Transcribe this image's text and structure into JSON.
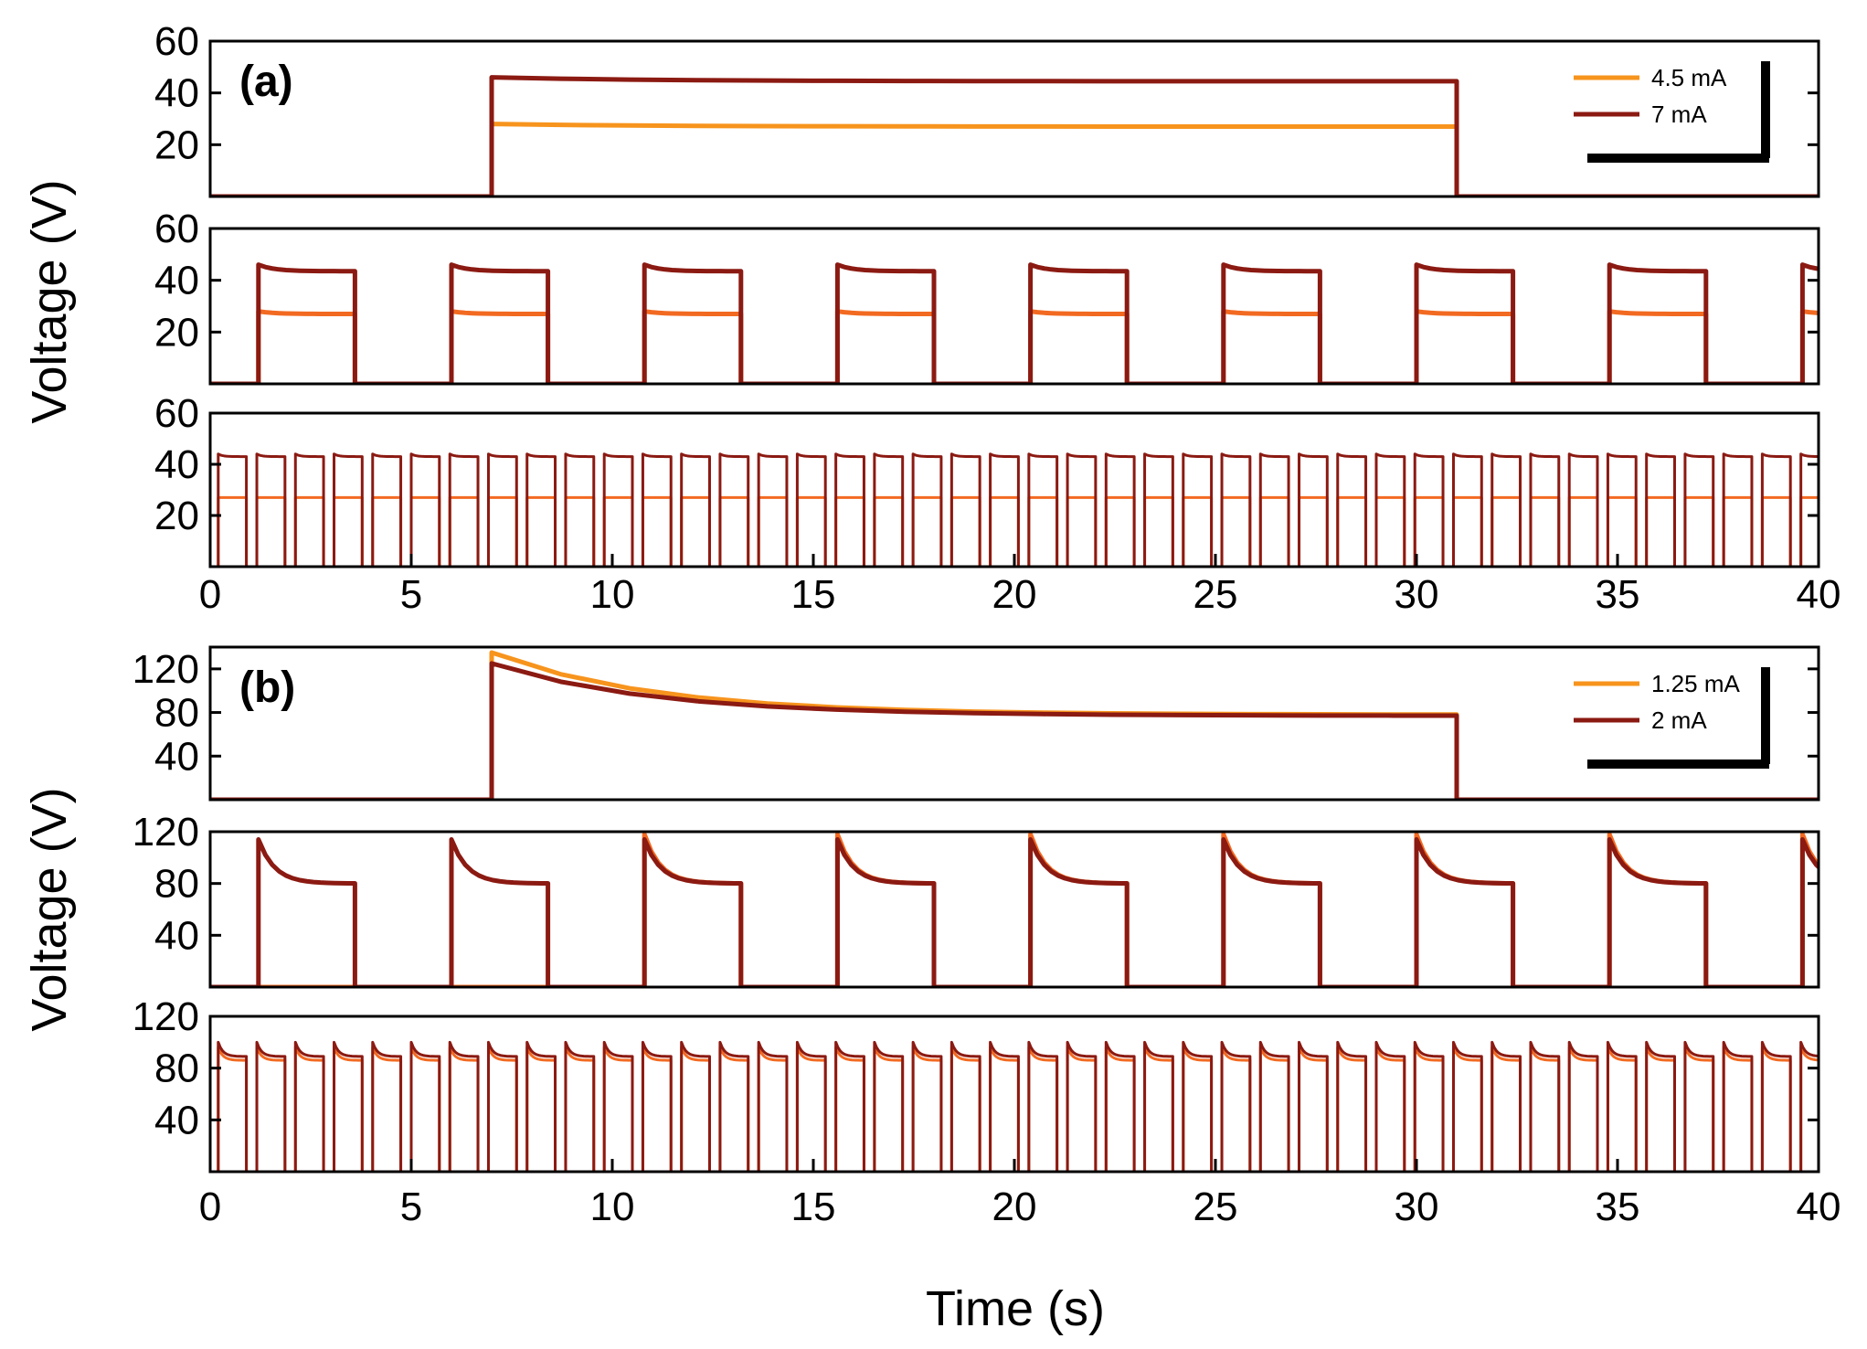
{
  "figure": {
    "xlabel": "Time (s)",
    "ylabel": "Voltage (V)",
    "colors": {
      "light": "#F7941D",
      "mid": "#F26A21",
      "dark": "#8B1A12",
      "axis": "#000000"
    }
  },
  "chart_data": [
    {
      "type": "line",
      "panel_label": "(a)",
      "title": "",
      "xlabel": "Time (s)",
      "ylabel": "Voltage (V)",
      "xlim": [
        0,
        40
      ],
      "x_ticks": [
        "0",
        "5",
        "10",
        "15",
        "20",
        "25",
        "30",
        "35",
        "40"
      ],
      "legend_location": "top-right",
      "legend": [
        "4.5 mA",
        "7 mA"
      ],
      "subplots": [
        {
          "name": "a-top",
          "pulse_period_s": 48,
          "pulse_on_s": 24,
          "pulse_start_s": 7.0,
          "ylim": [
            0,
            60
          ],
          "y_ticks": [
            "20",
            "40",
            "60"
          ],
          "series": [
            {
              "name": "4.5 mA",
              "color": "#F7941D",
              "on_level_V": 27,
              "peak_V": 28
            },
            {
              "name": "7 mA",
              "color": "#8B1A12",
              "on_level_V": 44.5,
              "peak_V": 46
            }
          ]
        },
        {
          "name": "a-middle",
          "pulse_period_s": 4.8,
          "pulse_on_s": 2.4,
          "pulse_start_s": 1.2,
          "ylim": [
            0,
            60
          ],
          "y_ticks": [
            "20",
            "40",
            "60"
          ],
          "series": [
            {
              "name": "4.5 mA",
              "color": "#F26A21",
              "on_level_V": 27,
              "peak_V": 28
            },
            {
              "name": "7 mA",
              "color": "#8B1A12",
              "on_level_V": 43.5,
              "peak_V": 46
            }
          ]
        },
        {
          "name": "a-bottom",
          "pulse_period_s": 0.96,
          "pulse_on_s": 0.7,
          "pulse_start_s": 0.2,
          "ylim": [
            0,
            60
          ],
          "y_ticks": [
            "20",
            "40",
            "60"
          ],
          "series": [
            {
              "name": "4.5 mA",
              "color": "#F26A21",
              "on_level_V": 27,
              "peak_V": 27
            },
            {
              "name": "7 mA",
              "color": "#8B1A12",
              "on_level_V": 43,
              "peak_V": 44
            }
          ]
        }
      ]
    },
    {
      "type": "line",
      "panel_label": "(b)",
      "title": "",
      "xlabel": "Time (s)",
      "ylabel": "Voltage (V)",
      "xlim": [
        0,
        40
      ],
      "x_ticks": [
        "0",
        "5",
        "10",
        "15",
        "20",
        "25",
        "30",
        "35",
        "40"
      ],
      "legend_location": "top-right",
      "legend": [
        "1.25 mA",
        "2 mA"
      ],
      "subplots": [
        {
          "name": "b-top",
          "pulse_period_s": 48,
          "pulse_on_s": 24,
          "pulse_start_s": 7.0,
          "ylim": [
            0,
            140
          ],
          "y_ticks": [
            "40",
            "80",
            "120"
          ],
          "series": [
            {
              "name": "1.25 mA",
              "color": "#F7941D",
              "on_level_V": 78,
              "peak_V": 135
            },
            {
              "name": "2 mA",
              "color": "#8B1A12",
              "on_level_V": 77,
              "peak_V": 125
            }
          ]
        },
        {
          "name": "b-middle",
          "pulse_period_s": 4.8,
          "pulse_on_s": 2.4,
          "pulse_start_s": 1.2,
          "ylim": [
            0,
            120
          ],
          "y_ticks": [
            "40",
            "80",
            "120"
          ],
          "series": [
            {
              "name": "1.25 mA",
              "color": "#F26A21",
              "on_level_V": 80,
              "peak_V": 118,
              "starts_at_s": 10.5
            },
            {
              "name": "2 mA",
              "color": "#8B1A12",
              "on_level_V": 80,
              "peak_V": 114
            }
          ]
        },
        {
          "name": "b-bottom",
          "pulse_period_s": 0.96,
          "pulse_on_s": 0.7,
          "pulse_start_s": 0.2,
          "ylim": [
            0,
            120
          ],
          "y_ticks": [
            "40",
            "80",
            "120"
          ],
          "series": [
            {
              "name": "1.25 mA",
              "color": "#F26A21",
              "on_level_V": 86,
              "peak_V": 96
            },
            {
              "name": "2 mA",
              "color": "#8B1A12",
              "on_level_V": 89,
              "peak_V": 100
            }
          ]
        }
      ]
    }
  ]
}
